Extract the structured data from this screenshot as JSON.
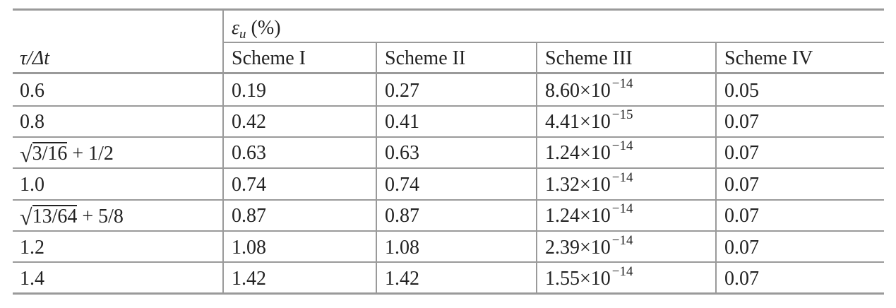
{
  "table": {
    "header": {
      "group_symbol": "ε",
      "group_sub": "u",
      "group_rest": " (%)",
      "row_header_symbol": "τ/Δt",
      "columns": [
        "Scheme I",
        "Scheme II",
        "Scheme III",
        "Scheme IV"
      ]
    },
    "rows": [
      {
        "tau": "0.6",
        "s1": "0.19",
        "s2": "0.27",
        "s3_mant": "8.60×10",
        "s3_exp": "−14",
        "s4": "0.05"
      },
      {
        "tau": "0.8",
        "s1": "0.42",
        "s2": "0.41",
        "s3_mant": "4.41×10",
        "s3_exp": "−15",
        "s4": "0.07"
      },
      {
        "tau_sqrt": "3/16",
        "tau_rest": " + 1/2",
        "s1": "0.63",
        "s2": "0.63",
        "s3_mant": "1.24×10",
        "s3_exp": "−14",
        "s4": "0.07"
      },
      {
        "tau": "1.0",
        "s1": "0.74",
        "s2": "0.74",
        "s3_mant": "1.32×10",
        "s3_exp": "−14",
        "s4": "0.07"
      },
      {
        "tau_sqrt": "13/64",
        "tau_rest": " + 5/8",
        "s1": "0.87",
        "s2": "0.87",
        "s3_mant": "1.24×10",
        "s3_exp": "−14",
        "s4": "0.07"
      },
      {
        "tau": "1.2",
        "s1": "1.08",
        "s2": "1.08",
        "s3_mant": "2.39×10",
        "s3_exp": "−14",
        "s4": "0.07"
      },
      {
        "tau": "1.4",
        "s1": "1.42",
        "s2": "1.42",
        "s3_mant": "1.55×10",
        "s3_exp": "−14",
        "s4": "0.07"
      }
    ]
  }
}
